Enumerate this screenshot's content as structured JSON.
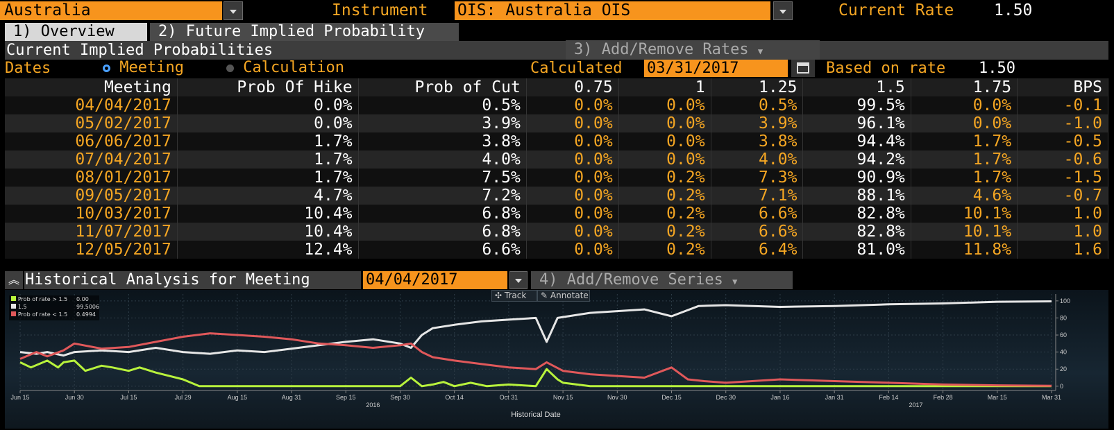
{
  "header": {
    "country": "Australia",
    "instrument_label": "Instrument",
    "instrument_value": "OIS: Australia OIS",
    "current_rate_label": "Current Rate",
    "current_rate_value": "1.50"
  },
  "tabs": [
    {
      "label": "1) Overview",
      "active": true
    },
    {
      "label": "2) Future Implied Probability",
      "active": false
    }
  ],
  "section": {
    "title": "Current Implied Probabilities",
    "add_remove_rates": "3) Add/Remove Rates",
    "dates_label": "Dates",
    "radio_meeting": "Meeting",
    "radio_calculation": "Calculation",
    "calculated_label": "Calculated",
    "calculated_value": "03/31/2017",
    "based_on_label": "Based on rate",
    "based_on_value": "1.50"
  },
  "table": {
    "headers": [
      "Meeting",
      "Prob Of Hike",
      "Prob of Cut",
      "0.75",
      "1",
      "1.25",
      "1.5",
      "1.75",
      "BPS"
    ],
    "rows": [
      [
        "04/04/2017",
        "0.0%",
        "0.5%",
        "0.0%",
        "0.0%",
        "0.5%",
        "99.5%",
        "0.0%",
        "-0.1"
      ],
      [
        "05/02/2017",
        "0.0%",
        "3.9%",
        "0.0%",
        "0.0%",
        "3.9%",
        "96.1%",
        "0.0%",
        "-1.0"
      ],
      [
        "06/06/2017",
        "1.7%",
        "3.8%",
        "0.0%",
        "0.0%",
        "3.8%",
        "94.4%",
        "1.7%",
        "-0.5"
      ],
      [
        "07/04/2017",
        "1.7%",
        "4.0%",
        "0.0%",
        "0.0%",
        "4.0%",
        "94.2%",
        "1.7%",
        "-0.6"
      ],
      [
        "08/01/2017",
        "1.7%",
        "7.5%",
        "0.0%",
        "0.2%",
        "7.3%",
        "90.9%",
        "1.7%",
        "-1.5"
      ],
      [
        "09/05/2017",
        "4.7%",
        "7.2%",
        "0.0%",
        "0.2%",
        "7.1%",
        "88.1%",
        "4.6%",
        "-0.7"
      ],
      [
        "10/03/2017",
        "10.4%",
        "6.8%",
        "0.0%",
        "0.2%",
        "6.6%",
        "82.8%",
        "10.1%",
        "1.0"
      ],
      [
        "11/07/2017",
        "10.4%",
        "6.8%",
        "0.0%",
        "0.2%",
        "6.6%",
        "82.8%",
        "10.1%",
        "1.0"
      ],
      [
        "12/05/2017",
        "12.4%",
        "6.6%",
        "0.0%",
        "0.2%",
        "6.4%",
        "81.0%",
        "11.8%",
        "1.6"
      ]
    ]
  },
  "historical": {
    "title": "Historical Analysis for Meeting",
    "meeting_value": "04/04/2017",
    "add_remove_series": "4) Add/Remove Series",
    "track": "Track",
    "annotate": "Annotate"
  },
  "chart_data": {
    "type": "line",
    "xlabel": "Historical Date",
    "x_ticks": [
      "Jun 15",
      "Jun 30",
      "Jul 15",
      "Jul 29",
      "Aug 15",
      "Aug 31",
      "Sep 15",
      "Sep 30",
      "Oct 14",
      "Oct 31",
      "Nov 15",
      "Nov 30",
      "Dec 15",
      "Dec 30",
      "Jan 16",
      "Jan 31",
      "Feb 14",
      "Feb 28",
      "Mar 15",
      "Mar 31"
    ],
    "year_labels": [
      {
        "after": "Sep 15",
        "label": "2016"
      },
      {
        "after": "Feb 14",
        "label": "2017"
      }
    ],
    "y_ticks": [
      0,
      20,
      40,
      60,
      80,
      100
    ],
    "ylim": [
      -5,
      108
    ],
    "legend": [
      {
        "name": "Prob of rate > 1.5",
        "value": "0.00",
        "color": "#b8f23c"
      },
      {
        "name": "1.5",
        "value": "99.5006",
        "color": "#e6e6e6"
      },
      {
        "name": "Prob of rate < 1.5",
        "value": "0.4994",
        "color": "#e0585a"
      }
    ],
    "series": [
      {
        "name": "Prob of rate > 1.5",
        "color": "#b8f23c",
        "x": [
          0,
          0.2,
          0.5,
          0.7,
          0.8,
          1.0,
          1.2,
          1.5,
          1.7,
          2.0,
          2.2,
          2.5,
          3.0,
          3.3,
          3.5,
          4.0,
          4.5,
          5.0,
          6.0,
          7.0,
          7.2,
          7.4,
          7.6,
          7.8,
          8.0,
          8.3,
          8.6,
          9.0,
          9.5,
          9.7,
          9.9,
          10.0,
          10.5,
          11,
          11.5,
          12,
          13,
          14,
          15,
          16,
          17,
          18,
          19
        ],
        "y": [
          28,
          22,
          30,
          22,
          28,
          30,
          18,
          24,
          22,
          18,
          22,
          16,
          8,
          0,
          0,
          0,
          0,
          0,
          0,
          0,
          10,
          0,
          2,
          5,
          0,
          4,
          0,
          2,
          0,
          20,
          8,
          4,
          0,
          0,
          0,
          0,
          0,
          0,
          0,
          0,
          0,
          0,
          0
        ]
      },
      {
        "name": "1.5",
        "color": "#e6e6e6",
        "x": [
          0,
          0.3,
          0.5,
          0.8,
          1.0,
          1.5,
          2.0,
          2.5,
          3.0,
          3.5,
          4.0,
          4.5,
          5.0,
          5.5,
          6.0,
          6.5,
          7.0,
          7.2,
          7.4,
          7.6,
          8.0,
          8.5,
          9.0,
          9.5,
          9.7,
          9.9,
          10.5,
          11,
          11.5,
          12,
          12.5,
          13,
          14,
          15,
          16,
          17,
          18,
          19
        ],
        "y": [
          40,
          38,
          40,
          36,
          40,
          42,
          40,
          45,
          40,
          38,
          42,
          40,
          44,
          48,
          52,
          55,
          50,
          45,
          60,
          68,
          72,
          76,
          78,
          80,
          52,
          80,
          86,
          88,
          90,
          82,
          94,
          95,
          93,
          94,
          96,
          97,
          99,
          99.5
        ]
      },
      {
        "name": "Prob of rate < 1.5",
        "color": "#e0585a",
        "x": [
          0,
          0.3,
          0.5,
          0.8,
          1.0,
          1.5,
          2.0,
          2.5,
          3.0,
          3.5,
          4.0,
          4.5,
          5.0,
          5.5,
          6.0,
          6.5,
          7.0,
          7.2,
          7.4,
          7.6,
          8.0,
          8.5,
          9.0,
          9.5,
          9.7,
          10.0,
          10.5,
          11,
          11.5,
          12,
          12.3,
          12.6,
          13,
          14,
          15,
          16,
          17,
          18,
          19
        ],
        "y": [
          32,
          40,
          35,
          42,
          50,
          44,
          46,
          52,
          58,
          62,
          60,
          58,
          55,
          50,
          48,
          45,
          48,
          50,
          40,
          34,
          30,
          26,
          22,
          20,
          28,
          18,
          14,
          12,
          10,
          22,
          8,
          6,
          4,
          8,
          6,
          4,
          2,
          1,
          0.5
        ]
      }
    ]
  }
}
